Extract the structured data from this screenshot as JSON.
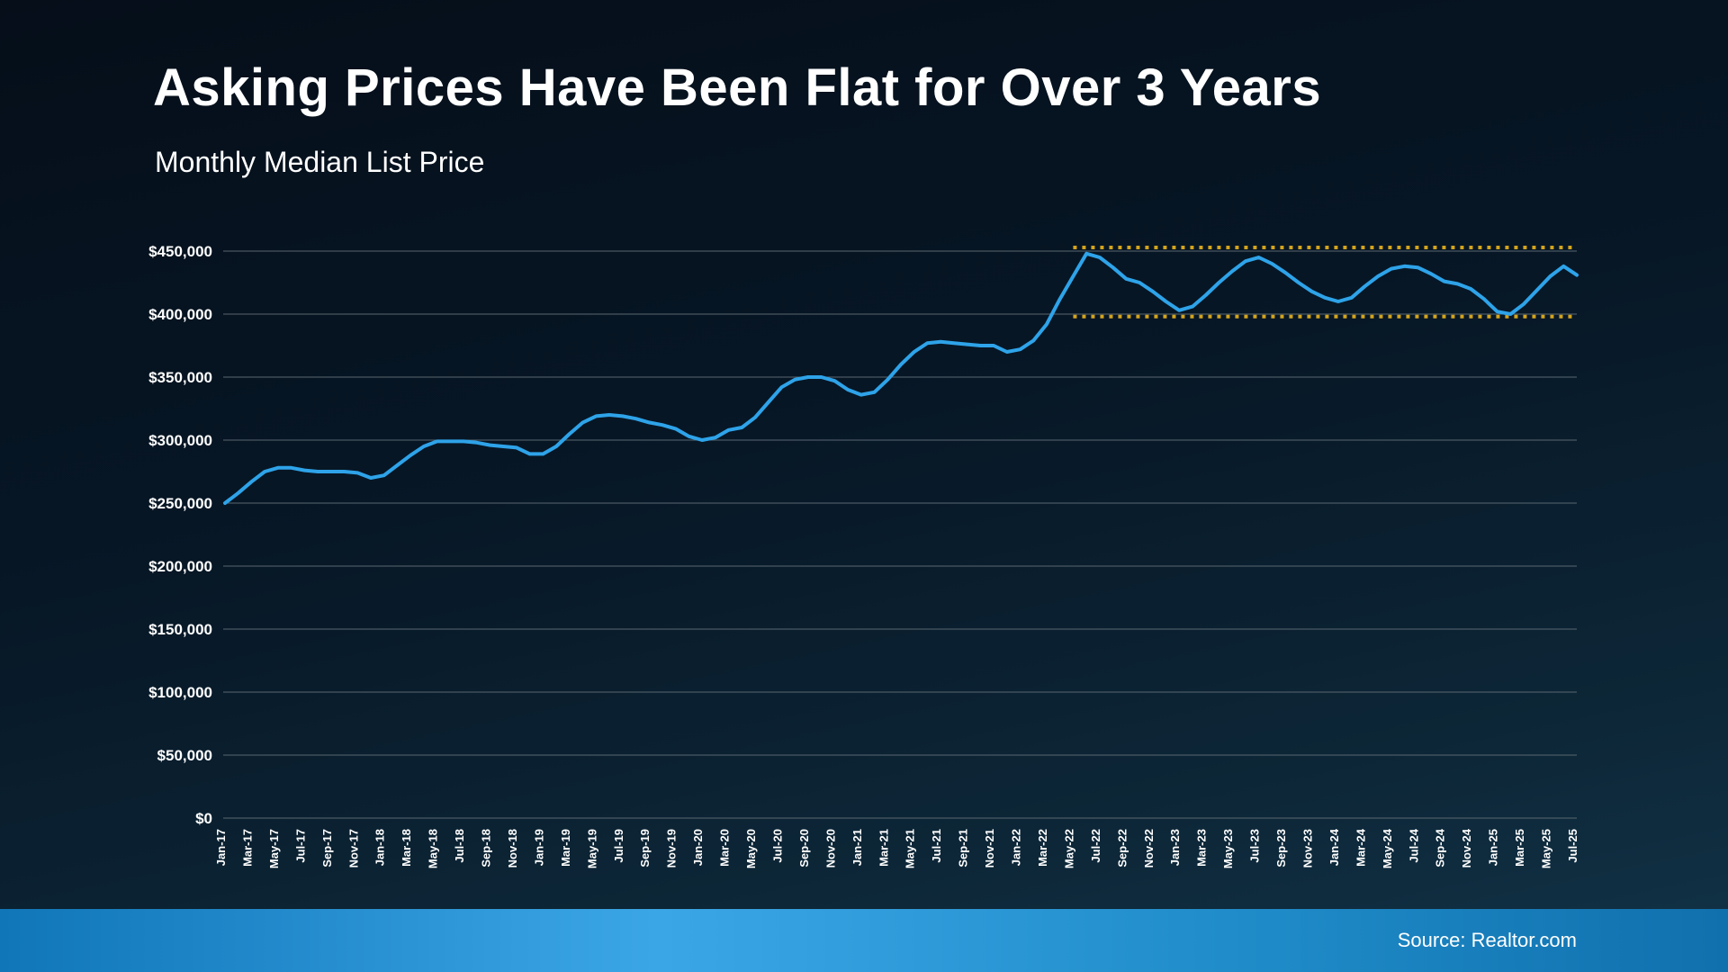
{
  "slide": {
    "title": "Asking Prices Have Been Flat for Over 3 Years",
    "subtitle": "Monthly Median List Price",
    "source": "Source: Realtor.com"
  },
  "colors": {
    "line": "#2ea3e9",
    "band": "#d4a41c",
    "grid": "#5a6770",
    "text": "#ffffff"
  },
  "chart_data": {
    "type": "line",
    "title": "Monthly Median List Price",
    "xlabel": "",
    "ylabel": "",
    "ylim": [
      0,
      450000
    ],
    "y_tick_step": 50000,
    "x_tick_every": 2,
    "grid": true,
    "legend_position": "none",
    "categories": [
      "Jan-17",
      "Feb-17",
      "Mar-17",
      "Apr-17",
      "May-17",
      "Jun-17",
      "Jul-17",
      "Aug-17",
      "Sep-17",
      "Oct-17",
      "Nov-17",
      "Dec-17",
      "Jan-18",
      "Feb-18",
      "Mar-18",
      "Apr-18",
      "May-18",
      "Jun-18",
      "Jul-18",
      "Aug-18",
      "Sep-18",
      "Oct-18",
      "Nov-18",
      "Dec-18",
      "Jan-19",
      "Feb-19",
      "Mar-19",
      "Apr-19",
      "May-19",
      "Jun-19",
      "Jul-19",
      "Aug-19",
      "Sep-19",
      "Oct-19",
      "Nov-19",
      "Dec-19",
      "Jan-20",
      "Feb-20",
      "Mar-20",
      "Apr-20",
      "May-20",
      "Jun-20",
      "Jul-20",
      "Aug-20",
      "Sep-20",
      "Oct-20",
      "Nov-20",
      "Dec-20",
      "Jan-21",
      "Feb-21",
      "Mar-21",
      "Apr-21",
      "May-21",
      "Jun-21",
      "Jul-21",
      "Aug-21",
      "Sep-21",
      "Oct-21",
      "Nov-21",
      "Dec-21",
      "Jan-22",
      "Feb-22",
      "Mar-22",
      "Apr-22",
      "May-22",
      "Jun-22",
      "Jul-22",
      "Aug-22",
      "Sep-22",
      "Oct-22",
      "Nov-22",
      "Dec-22",
      "Jan-23",
      "Feb-23",
      "Mar-23",
      "Apr-23",
      "May-23",
      "Jun-23",
      "Jul-23",
      "Aug-23",
      "Sep-23",
      "Oct-23",
      "Nov-23",
      "Dec-23",
      "Jan-24",
      "Feb-24",
      "Mar-24",
      "Apr-24",
      "May-24",
      "Jun-24",
      "Jul-24",
      "Aug-24",
      "Sep-24",
      "Oct-24",
      "Nov-24",
      "Dec-24",
      "Jan-25",
      "Feb-25",
      "Mar-25",
      "Apr-25",
      "May-25",
      "Jun-25",
      "Jul-25"
    ],
    "series": [
      {
        "name": "Monthly Median List Price",
        "values": [
          250000,
          258000,
          267000,
          275000,
          278000,
          278000,
          276000,
          275000,
          275000,
          275000,
          274000,
          270000,
          272000,
          280000,
          288000,
          295000,
          299000,
          299000,
          299000,
          298000,
          296000,
          295000,
          294000,
          289000,
          289000,
          295000,
          305000,
          314000,
          319000,
          320000,
          319000,
          317000,
          314000,
          312000,
          309000,
          303000,
          300000,
          302000,
          308000,
          310000,
          318000,
          330000,
          342000,
          348000,
          350000,
          350000,
          347000,
          340000,
          336000,
          338000,
          348000,
          360000,
          370000,
          377000,
          378000,
          377000,
          376000,
          375000,
          375000,
          370000,
          372000,
          379000,
          392000,
          412000,
          430000,
          448000,
          445000,
          437000,
          428000,
          425000,
          418000,
          410000,
          403000,
          406000,
          415000,
          425000,
          434000,
          442000,
          445000,
          440000,
          433000,
          425000,
          418000,
          413000,
          410000,
          413000,
          422000,
          430000,
          436000,
          438000,
          437000,
          432000,
          426000,
          424000,
          420000,
          412000,
          402000,
          400000,
          408000,
          419000,
          430000,
          438000,
          431000
        ]
      }
    ],
    "annotations": {
      "flat_band": {
        "top": 450000,
        "bottom": 398000,
        "start_category": "May-22",
        "style": "dotted"
      }
    }
  }
}
